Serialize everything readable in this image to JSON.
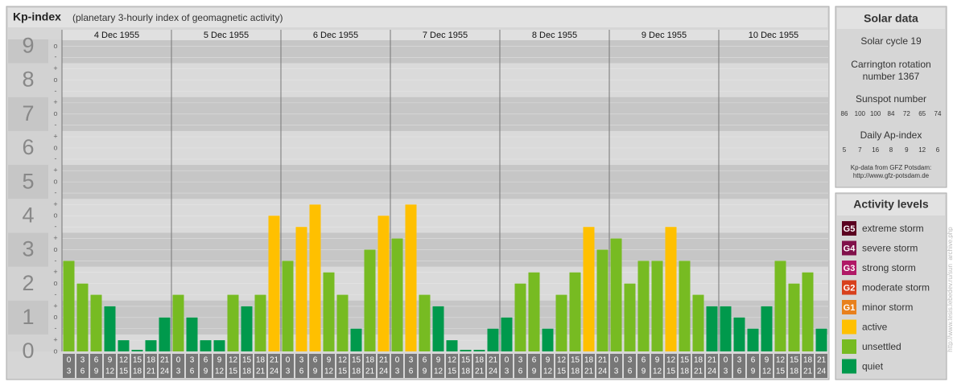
{
  "chart_data": {
    "type": "bar",
    "title": "Kp-index",
    "subtitle": "(planetary 3-hourly index of geomagnetic activity)",
    "ylim": [
      0,
      9.2
    ],
    "yticks": [
      0,
      1,
      2,
      3,
      4,
      5,
      6,
      7,
      8,
      9
    ],
    "minor_ticks": [
      {
        "value": 0,
        "label": "o"
      },
      {
        "value": 0.33,
        "label": "+"
      },
      {
        "value": 0.67,
        "label": "-"
      },
      {
        "value": 1,
        "label": "o"
      },
      {
        "value": 1.33,
        "label": "+"
      },
      {
        "value": 1.67,
        "label": "-"
      },
      {
        "value": 2,
        "label": "o"
      },
      {
        "value": 2.33,
        "label": "+"
      },
      {
        "value": 2.67,
        "label": "-"
      },
      {
        "value": 3,
        "label": "o"
      },
      {
        "value": 3.33,
        "label": "+"
      },
      {
        "value": 3.67,
        "label": "-"
      },
      {
        "value": 4,
        "label": "o"
      },
      {
        "value": 4.33,
        "label": "+"
      },
      {
        "value": 4.67,
        "label": "-"
      },
      {
        "value": 5,
        "label": "o"
      },
      {
        "value": 5.33,
        "label": "+"
      },
      {
        "value": 5.67,
        "label": "-"
      },
      {
        "value": 6,
        "label": "o"
      },
      {
        "value": 6.33,
        "label": "+"
      },
      {
        "value": 6.67,
        "label": "-"
      },
      {
        "value": 7,
        "label": "o"
      },
      {
        "value": 7.33,
        "label": "+"
      },
      {
        "value": 7.67,
        "label": "-"
      },
      {
        "value": 8,
        "label": "o"
      },
      {
        "value": 8.33,
        "label": "+"
      },
      {
        "value": 8.67,
        "label": "-"
      },
      {
        "value": 9,
        "label": "o"
      }
    ],
    "time_ranges": [
      [
        0,
        3
      ],
      [
        3,
        6
      ],
      [
        6,
        9
      ],
      [
        9,
        12
      ],
      [
        12,
        15
      ],
      [
        15,
        18
      ],
      [
        18,
        21
      ],
      [
        21,
        24
      ]
    ],
    "days": [
      {
        "label": "4 Dec 1955",
        "values": [
          2.67,
          2,
          1.67,
          1.33,
          0.33,
          0,
          0.33,
          1
        ],
        "colors": [
          "#77bb22",
          "#77bb22",
          "#77bb22",
          "#00994c",
          "#00994c",
          "#00994c",
          "#00994c",
          "#00994c"
        ]
      },
      {
        "label": "5 Dec 1955",
        "values": [
          1.67,
          1,
          0.33,
          0.33,
          1.67,
          1.33,
          1.67,
          4
        ],
        "colors": [
          "#77bb22",
          "#00994c",
          "#00994c",
          "#00994c",
          "#77bb22",
          "#00994c",
          "#77bb22",
          "#ffc000"
        ]
      },
      {
        "label": "6 Dec 1955",
        "values": [
          2.67,
          3.67,
          4.33,
          2.33,
          1.67,
          0.67,
          3,
          4
        ],
        "colors": [
          "#77bb22",
          "#ffc000",
          "#ffc000",
          "#77bb22",
          "#77bb22",
          "#00994c",
          "#77bb22",
          "#ffc000"
        ]
      },
      {
        "label": "7 Dec 1955",
        "values": [
          3.33,
          4.33,
          1.67,
          1.33,
          0.33,
          0,
          0,
          0.67
        ],
        "colors": [
          "#77bb22",
          "#ffc000",
          "#77bb22",
          "#00994c",
          "#00994c",
          "#00994c",
          "#00994c",
          "#00994c"
        ]
      },
      {
        "label": "8 Dec 1955",
        "values": [
          1,
          2,
          2.33,
          0.67,
          1.67,
          2.33,
          3.67,
          3
        ],
        "colors": [
          "#00994c",
          "#77bb22",
          "#77bb22",
          "#00994c",
          "#77bb22",
          "#77bb22",
          "#ffc000",
          "#77bb22"
        ]
      },
      {
        "label": "9 Dec 1955",
        "values": [
          3.33,
          2,
          2.67,
          2.67,
          3.67,
          2.67,
          1.67,
          1.33
        ],
        "colors": [
          "#77bb22",
          "#77bb22",
          "#77bb22",
          "#77bb22",
          "#ffc000",
          "#77bb22",
          "#77bb22",
          "#00994c"
        ]
      },
      {
        "label": "10 Dec 1955",
        "values": [
          1.33,
          1,
          0.67,
          1.33,
          2.67,
          2,
          2.33,
          0.67
        ],
        "colors": [
          "#00994c",
          "#00994c",
          "#00994c",
          "#00994c",
          "#77bb22",
          "#77bb22",
          "#77bb22",
          "#00994c"
        ]
      }
    ]
  },
  "solar_data": {
    "title": "Solar data",
    "cycle": "Solar cycle 19",
    "rotation": [
      "Carrington rotation",
      "number 1367"
    ],
    "sunspot_title": "Sunspot number",
    "sunspot": [
      86,
      100,
      100,
      84,
      72,
      65,
      74
    ],
    "ap_title": "Daily Ap-index",
    "ap": [
      5,
      7,
      16,
      8,
      9,
      12,
      6
    ],
    "source": [
      "Kp-data from GFZ Potsdam:",
      "http://www.gfz-potsdam.de"
    ]
  },
  "activity_levels": {
    "title": "Activity levels",
    "items": [
      {
        "code": "G5",
        "label": "extreme storm",
        "color": "#5a0020"
      },
      {
        "code": "G4",
        "label": "severe storm",
        "color": "#80104a"
      },
      {
        "code": "G3",
        "label": "strong storm",
        "color": "#b01866"
      },
      {
        "code": "G2",
        "label": "moderate storm",
        "color": "#d8401c"
      },
      {
        "code": "G1",
        "label": "minor storm",
        "color": "#e8801c"
      },
      {
        "label": "active",
        "color": "#ffc000"
      },
      {
        "label": "unsettled",
        "color": "#77bb22"
      },
      {
        "label": "quiet",
        "color": "#00994c"
      }
    ]
  },
  "credit": "http://www.tesis.lebedev.ru/sun_archive.php"
}
